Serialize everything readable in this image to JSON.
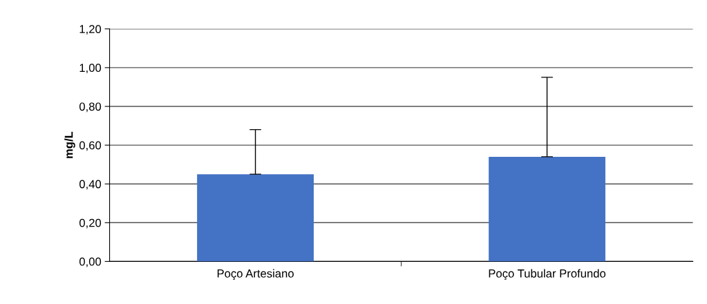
{
  "chart_data": {
    "type": "bar",
    "ylabel": "mg/L",
    "categories": [
      "Poço Artesiano",
      "Poço Tubular Profundo"
    ],
    "values": [
      0.45,
      0.54
    ],
    "color": "#4472c4",
    "errors": [
      [
        0.45,
        0.68
      ],
      [
        0.54,
        0.95
      ]
    ],
    "ylim": [
      0,
      1.2
    ],
    "yticks": [
      {
        "value": 0,
        "label": "0,00"
      },
      {
        "value": 0.2,
        "label": "0,20"
      },
      {
        "value": 0.4,
        "label": "0,40"
      },
      {
        "value": 0.6,
        "label": "0,60"
      },
      {
        "value": 0.8,
        "label": "0,80"
      },
      {
        "value": 1.0,
        "label": "1,00"
      },
      {
        "value": 1.2,
        "label": "1,20"
      }
    ],
    "grid": "y"
  }
}
